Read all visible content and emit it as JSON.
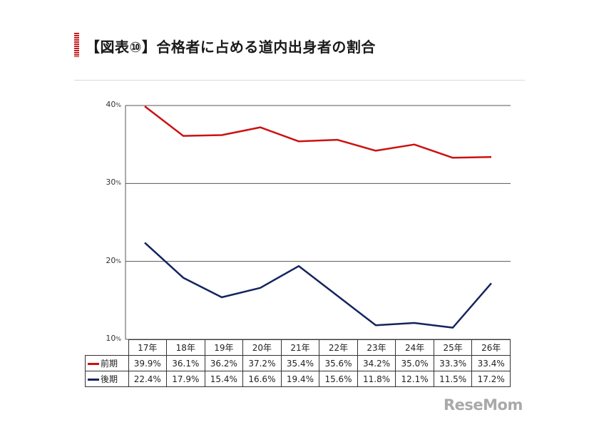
{
  "page": {
    "title": "【図表⑩】合格者に占める道内出身者の割合",
    "logo_text": "ReseMom",
    "accent_color": "#c21c1c"
  },
  "chart_data": {
    "type": "line",
    "title": "",
    "xlabel": "",
    "ylabel": "",
    "categories": [
      "17年",
      "18年",
      "19年",
      "20年",
      "21年",
      "22年",
      "23年",
      "24年",
      "25年",
      "26年"
    ],
    "ylim": [
      10,
      40
    ],
    "yticks": [
      {
        "value": 40,
        "label": "40",
        "unit": "%"
      },
      {
        "value": 30,
        "label": "30",
        "unit": "%"
      },
      {
        "value": 20,
        "label": "20",
        "unit": "%"
      },
      {
        "value": 10,
        "label": "10",
        "unit": "%"
      }
    ],
    "grid": true,
    "legend_placement": "table-left",
    "series": [
      {
        "name": "前期",
        "color": "#cc1111",
        "values": [
          39.9,
          36.1,
          36.2,
          37.2,
          35.4,
          35.6,
          34.2,
          35.0,
          33.3,
          33.4
        ],
        "labels": [
          "39.9%",
          "36.1%",
          "36.2%",
          "37.2%",
          "35.4%",
          "35.6%",
          "34.2%",
          "35.0%",
          "33.3%",
          "33.4%"
        ]
      },
      {
        "name": "後期",
        "color": "#13245e",
        "values": [
          22.4,
          17.9,
          15.4,
          16.6,
          19.4,
          15.6,
          11.8,
          12.1,
          11.5,
          17.2
        ],
        "labels": [
          "22.4%",
          "17.9%",
          "15.4%",
          "16.6%",
          "19.4%",
          "15.6%",
          "11.8%",
          "12.1%",
          "11.5%",
          "17.2%"
        ]
      }
    ]
  }
}
